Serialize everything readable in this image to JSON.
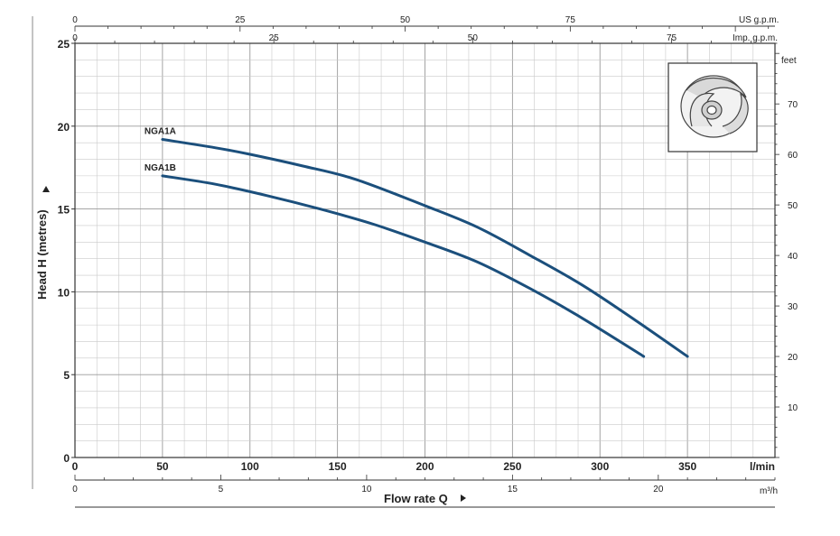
{
  "chart_data": {
    "type": "line",
    "xlabel": "Flow rate Q",
    "ylabel": "Head H (metres)",
    "xlim": [
      0,
      400
    ],
    "ylim": [
      0,
      25
    ],
    "x_major_ticks": [
      0,
      50,
      100,
      150,
      200,
      250,
      300,
      350
    ],
    "y_major_ticks": [
      0,
      5,
      10,
      15,
      20,
      25
    ],
    "x_unit": "l/min",
    "grid": true,
    "series": [
      {
        "name": "NGA1A",
        "color": "#1b4f7c",
        "x": [
          50,
          80,
          100,
          130,
          160,
          200,
          230,
          260,
          290,
          320,
          350
        ],
        "y": [
          19.2,
          18.7,
          18.3,
          17.6,
          16.8,
          15.2,
          13.9,
          12.2,
          10.4,
          8.3,
          6.1
        ]
      },
      {
        "name": "NGA1B",
        "color": "#1b4f7c",
        "x": [
          50,
          80,
          110,
          140,
          170,
          200,
          230,
          260,
          290,
          325
        ],
        "y": [
          17.0,
          16.5,
          15.8,
          15.0,
          14.1,
          13.0,
          11.8,
          10.2,
          8.4,
          6.1
        ]
      }
    ],
    "secondary_axes": {
      "m3h": {
        "label": "m³/h",
        "ticks": [
          0,
          5,
          10,
          15,
          20
        ],
        "range": [
          0,
          24
        ]
      },
      "imp_gpm": {
        "label": "Imp. g.p.m.",
        "ticks": [
          0,
          25,
          50,
          75
        ],
        "range": [
          0,
          88
        ]
      },
      "us_gpm": {
        "label": "US g.p.m.",
        "ticks": [
          0,
          25,
          50,
          75
        ],
        "range": [
          0,
          106
        ]
      },
      "feet": {
        "label": "feet",
        "ticks": [
          10,
          20,
          30,
          40,
          50,
          60,
          70
        ],
        "range": [
          0,
          82
        ]
      }
    }
  }
}
